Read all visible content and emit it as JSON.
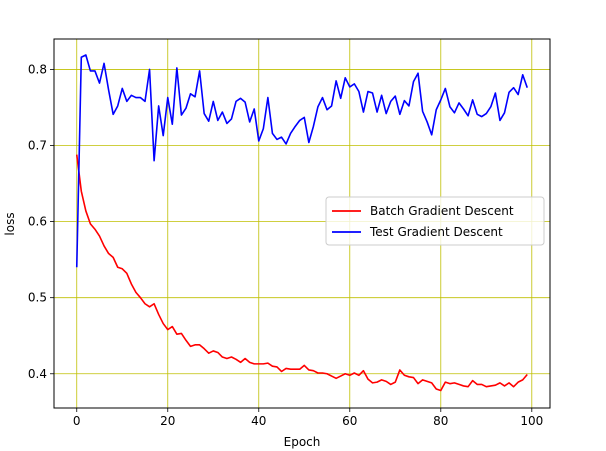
{
  "chart_data": {
    "type": "line",
    "title": "",
    "xlabel": "Epoch",
    "ylabel": "loss",
    "xlim": [
      -5,
      104
    ],
    "ylim": [
      0.355,
      0.84
    ],
    "xticks": [
      0,
      20,
      40,
      60,
      80,
      100
    ],
    "yticks": [
      0.4,
      0.5,
      0.6,
      0.7,
      0.8
    ],
    "x_tick_labels": [
      "0",
      "20",
      "40",
      "60",
      "80",
      "100"
    ],
    "y_tick_labels": [
      "0.4",
      "0.5",
      "0.6",
      "0.7",
      "0.8"
    ],
    "grid": true,
    "grid_color": "#bfbf00",
    "legend_position": "center-right",
    "series": [
      {
        "name": "Batch Gradient Descent",
        "color": "#ff0000",
        "x": [
          0,
          1,
          2,
          3,
          4,
          5,
          6,
          7,
          8,
          9,
          10,
          11,
          12,
          13,
          14,
          15,
          16,
          17,
          18,
          19,
          20,
          21,
          22,
          23,
          24,
          25,
          26,
          27,
          28,
          29,
          30,
          31,
          32,
          33,
          34,
          35,
          36,
          37,
          38,
          39,
          40,
          41,
          42,
          43,
          44,
          45,
          46,
          47,
          48,
          49,
          50,
          51,
          52,
          53,
          54,
          55,
          56,
          57,
          58,
          59,
          60,
          61,
          62,
          63,
          64,
          65,
          66,
          67,
          68,
          69,
          70,
          71,
          72,
          73,
          74,
          75,
          76,
          77,
          78,
          79,
          80,
          81,
          82,
          83,
          84,
          85,
          86,
          87,
          88,
          89,
          90,
          91,
          92,
          93,
          94,
          95,
          96,
          97,
          98,
          99
        ],
        "values": [
          0.688,
          0.64,
          0.614,
          0.597,
          0.59,
          0.581,
          0.568,
          0.558,
          0.553,
          0.54,
          0.538,
          0.532,
          0.518,
          0.507,
          0.5,
          0.492,
          0.488,
          0.492,
          0.478,
          0.466,
          0.458,
          0.462,
          0.452,
          0.453,
          0.444,
          0.436,
          0.438,
          0.438,
          0.433,
          0.427,
          0.43,
          0.428,
          0.422,
          0.42,
          0.422,
          0.419,
          0.415,
          0.42,
          0.415,
          0.413,
          0.413,
          0.413,
          0.414,
          0.41,
          0.409,
          0.403,
          0.407,
          0.406,
          0.406,
          0.406,
          0.411,
          0.405,
          0.404,
          0.401,
          0.401,
          0.4,
          0.397,
          0.394,
          0.397,
          0.4,
          0.398,
          0.401,
          0.398,
          0.404,
          0.393,
          0.388,
          0.389,
          0.392,
          0.39,
          0.386,
          0.389,
          0.405,
          0.398,
          0.396,
          0.395,
          0.387,
          0.392,
          0.39,
          0.388,
          0.38,
          0.378,
          0.389,
          0.387,
          0.388,
          0.386,
          0.384,
          0.383,
          0.391,
          0.386,
          0.386,
          0.383,
          0.384,
          0.385,
          0.388,
          0.384,
          0.388,
          0.383,
          0.389,
          0.392,
          0.399
        ]
      },
      {
        "name": "Test Gradient Descent",
        "color": "#0000ff",
        "x": [
          0,
          1,
          2,
          3,
          4,
          5,
          6,
          7,
          8,
          9,
          10,
          11,
          12,
          13,
          14,
          15,
          16,
          17,
          18,
          19,
          20,
          21,
          22,
          23,
          24,
          25,
          26,
          27,
          28,
          29,
          30,
          31,
          32,
          33,
          34,
          35,
          36,
          37,
          38,
          39,
          40,
          41,
          42,
          43,
          44,
          45,
          46,
          47,
          48,
          49,
          50,
          51,
          52,
          53,
          54,
          55,
          56,
          57,
          58,
          59,
          60,
          61,
          62,
          63,
          64,
          65,
          66,
          67,
          68,
          69,
          70,
          71,
          72,
          73,
          74,
          75,
          76,
          77,
          78,
          79,
          80,
          81,
          82,
          83,
          84,
          85,
          86,
          87,
          88,
          89,
          90,
          91,
          92,
          93,
          94,
          95,
          96,
          97,
          98,
          99
        ],
        "values": [
          0.54,
          0.816,
          0.819,
          0.798,
          0.798,
          0.782,
          0.808,
          0.773,
          0.741,
          0.752,
          0.775,
          0.758,
          0.766,
          0.763,
          0.763,
          0.758,
          0.8,
          0.68,
          0.752,
          0.713,
          0.763,
          0.728,
          0.802,
          0.74,
          0.749,
          0.768,
          0.764,
          0.798,
          0.742,
          0.732,
          0.758,
          0.733,
          0.744,
          0.729,
          0.735,
          0.758,
          0.762,
          0.757,
          0.731,
          0.748,
          0.706,
          0.722,
          0.763,
          0.716,
          0.708,
          0.711,
          0.702,
          0.716,
          0.725,
          0.733,
          0.737,
          0.704,
          0.725,
          0.751,
          0.763,
          0.747,
          0.752,
          0.785,
          0.762,
          0.789,
          0.777,
          0.781,
          0.771,
          0.744,
          0.771,
          0.769,
          0.744,
          0.766,
          0.742,
          0.758,
          0.765,
          0.741,
          0.759,
          0.752,
          0.784,
          0.795,
          0.745,
          0.731,
          0.714,
          0.747,
          0.76,
          0.775,
          0.751,
          0.743,
          0.756,
          0.748,
          0.739,
          0.76,
          0.741,
          0.738,
          0.742,
          0.751,
          0.769,
          0.733,
          0.743,
          0.77,
          0.776,
          0.767,
          0.793,
          0.776
        ]
      }
    ]
  }
}
